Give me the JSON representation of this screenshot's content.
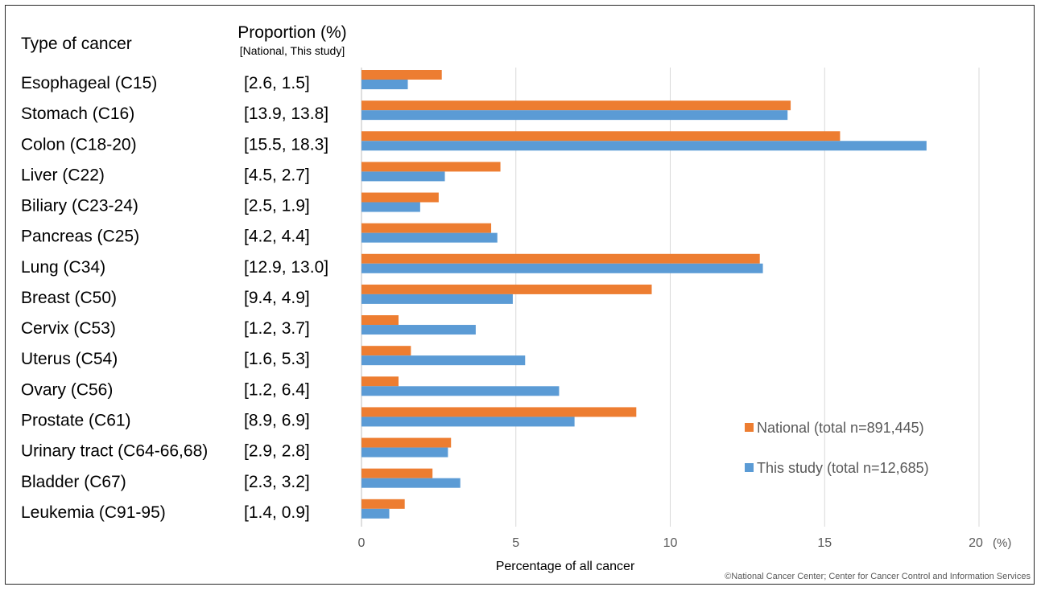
{
  "chart_data": {
    "type": "bar",
    "orientation": "horizontal",
    "column_headers": {
      "category": "Type of cancer",
      "proportion": "Proportion (%)",
      "proportion_sub": "[National, This study]"
    },
    "categories": [
      "Esophageal (C15)",
      "Stomach (C16)",
      "Colon (C18-20)",
      "Liver (C22)",
      "Biliary (C23-24)",
      "Pancreas (C25)",
      "Lung (C34)",
      "Breast (C50)",
      "Cervix (C53)",
      "Uterus (C54)",
      "Ovary (C56)",
      "Prostate (C61)",
      "Urinary tract (C64-66,68)",
      "Bladder (C67)",
      "Leukemia (C91-95)"
    ],
    "proportion_labels": [
      "[2.6, 1.5]",
      "[13.9, 13.8]",
      "[15.5, 18.3]",
      "[4.5, 2.7]",
      "[2.5, 1.9]",
      "[4.2, 4.4]",
      "[12.9, 13.0]",
      "[9.4, 4.9]",
      "[1.2, 3.7]",
      "[1.6, 5.3]",
      "[1.2, 6.4]",
      "[8.9, 6.9]",
      "[2.9, 2.8]",
      "[2.3, 3.2]",
      "[1.4, 0.9]"
    ],
    "series": [
      {
        "name": "National (total n=891,445)",
        "color": "#ED7D31",
        "values": [
          2.6,
          13.9,
          15.5,
          4.5,
          2.5,
          4.2,
          12.9,
          9.4,
          1.2,
          1.6,
          1.2,
          8.9,
          2.9,
          2.3,
          1.4
        ]
      },
      {
        "name": "This study (total n=12,685)",
        "color": "#5B9BD5",
        "values": [
          1.5,
          13.8,
          18.3,
          2.7,
          1.9,
          4.4,
          13.0,
          4.9,
          3.7,
          5.3,
          6.4,
          6.9,
          2.8,
          3.2,
          0.9
        ]
      }
    ],
    "xlim": [
      0,
      20
    ],
    "xticks": [
      0,
      5,
      10,
      15,
      20
    ],
    "x_unit": "(%)",
    "xlabel": "Percentage of all cancer",
    "grid": true,
    "legend_position": "right",
    "credit": "©National Cancer Center; Center for Cancer Control and Information Services"
  }
}
